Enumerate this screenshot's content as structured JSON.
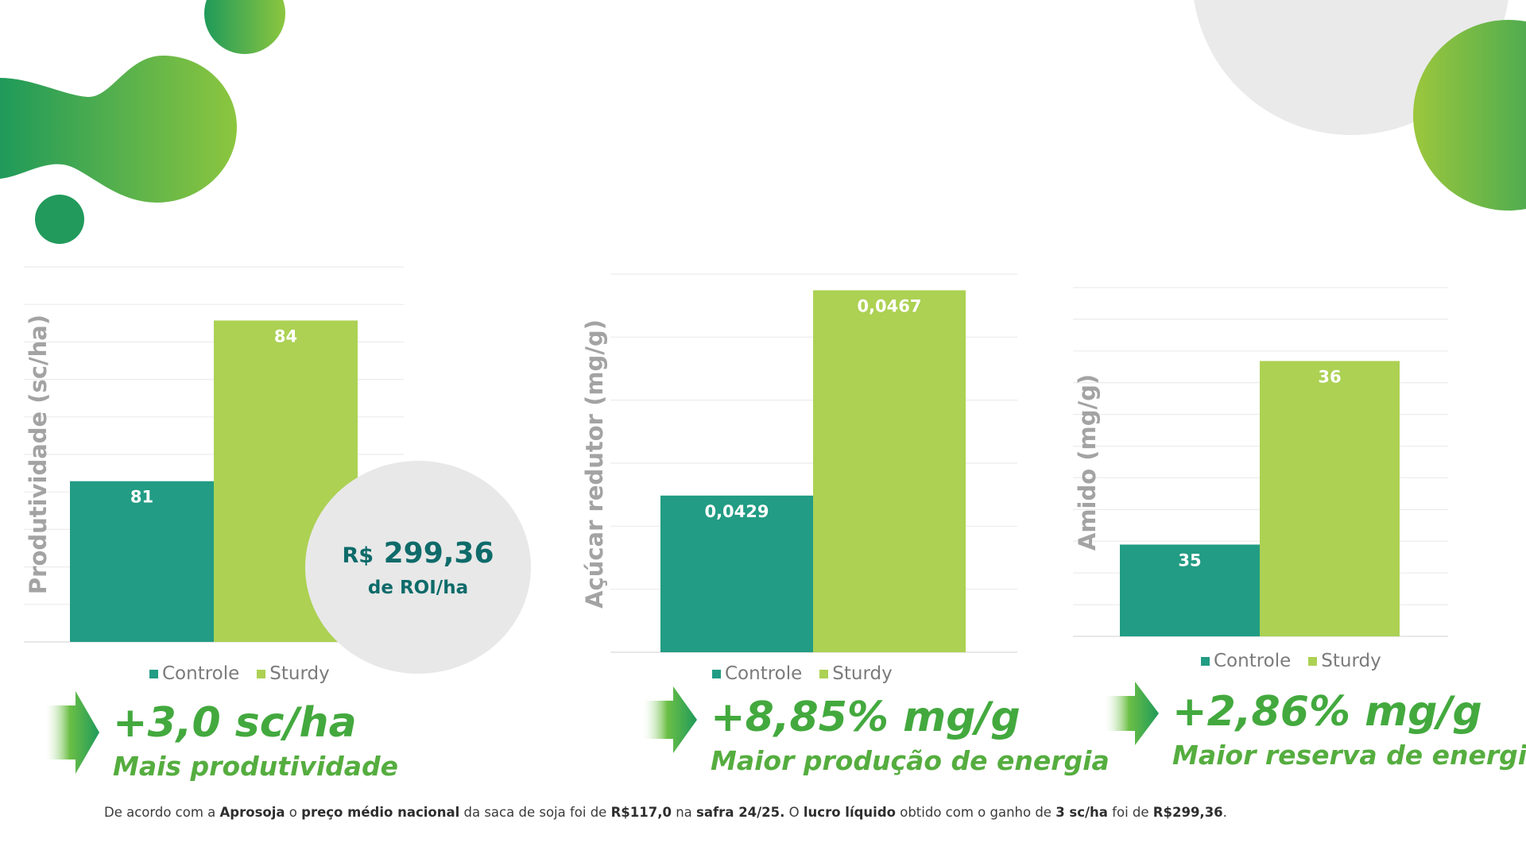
{
  "colors": {
    "controle": "#229c84",
    "sturdy": "#acd153",
    "accent_green": "#43a93e",
    "dark_teal": "#0e6b6a"
  },
  "chart_data": [
    {
      "type": "bar",
      "ylabel": "Produtividade (sc/ha)",
      "series": [
        {
          "name": "Controle",
          "values": [
            81
          ],
          "label": "81"
        },
        {
          "name": "Sturdy",
          "values": [
            84
          ],
          "label": "84"
        }
      ],
      "ylim": [
        78,
        85
      ],
      "grid": true,
      "legend": "bottom"
    },
    {
      "type": "bar",
      "ylabel": "Açúcar redutor (mg/g)",
      "series": [
        {
          "name": "Controle",
          "values": [
            0.0429
          ],
          "label": "0,0429"
        },
        {
          "name": "Sturdy",
          "values": [
            0.0467
          ],
          "label": "0,0467"
        }
      ],
      "ylim": [
        0.04,
        0.047
      ],
      "grid": true,
      "legend": "bottom"
    },
    {
      "type": "bar",
      "ylabel": "Amido (mg/g)",
      "series": [
        {
          "name": "Controle",
          "values": [
            35
          ],
          "label": "35"
        },
        {
          "name": "Sturdy",
          "values": [
            36
          ],
          "label": "36"
        }
      ],
      "ylim": [
        34.5,
        36.4
      ],
      "grid": true,
      "legend": "bottom"
    }
  ],
  "legend": {
    "controle": "Controle",
    "sturdy": "Sturdy"
  },
  "roi": {
    "currency": "R$",
    "amount": "299,36",
    "label": "de ROI/ha"
  },
  "gains": [
    {
      "value": "+3,0 sc/ha",
      "description": "Mais produtividade"
    },
    {
      "value": "+8,85% mg/g",
      "description": "Maior produção de energia"
    },
    {
      "value": "+2,86% mg/g",
      "description": "Maior reserva de energia"
    }
  ],
  "footnote": {
    "t1": "De acordo com a ",
    "b1": "Aprosoja",
    "t2": " o ",
    "b2": "preço médio nacional",
    "t3": " da saca de soja  foi de ",
    "b3": "R$117,0",
    "t4": " na ",
    "b4": "safra 24/25.",
    "t5": " O ",
    "b5": "lucro líquido",
    "t6": " obtido com o ganho de ",
    "b6": "3 sc/ha",
    "t7": " foi de ",
    "b7": "R$299,36",
    "t8": "."
  }
}
